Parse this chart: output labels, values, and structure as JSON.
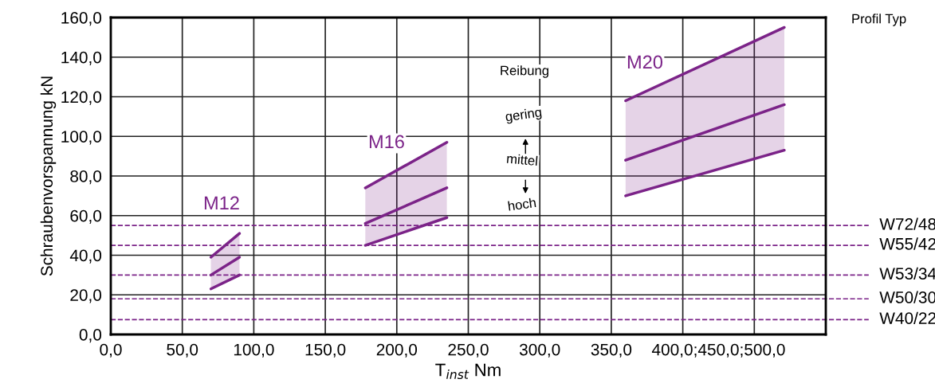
{
  "chart_data": {
    "type": "line",
    "xlabel": "T$_{inst}$ Nm",
    "ylabel": "Schraubenvorspannung kN",
    "xlim": [
      0,
      500
    ],
    "ylim": [
      0,
      160
    ],
    "xticks": [
      {
        "value": 0,
        "label": "0,0"
      },
      {
        "value": 50,
        "label": "50,0"
      },
      {
        "value": 100,
        "label": "100,0"
      },
      {
        "value": 150,
        "label": "150,0"
      },
      {
        "value": 200,
        "label": "200,0"
      },
      {
        "value": 250,
        "label": "250,0"
      },
      {
        "value": 300,
        "label": "300,0"
      },
      {
        "value": 350,
        "label": "350,0"
      },
      {
        "value": 400,
        "label": null
      },
      {
        "value": 425,
        "label": "400,0;450,0;500,0"
      },
      {
        "value": 450,
        "label": null
      }
    ],
    "yticks": [
      {
        "value": 0,
        "label": "0,0"
      },
      {
        "value": 20,
        "label": "20,0"
      },
      {
        "value": 40,
        "label": "40,0"
      },
      {
        "value": 60,
        "label": "60,0"
      },
      {
        "value": 80,
        "label": "80,0"
      },
      {
        "value": 100,
        "label": "100,0"
      },
      {
        "value": 120,
        "label": "120,0"
      },
      {
        "value": 140,
        "label": "140,0"
      },
      {
        "value": 160,
        "label": "160,0"
      }
    ],
    "grid": true,
    "line_style": "solid",
    "marker": "none",
    "series": [
      {
        "color": "#7b2388",
        "x": [
          70,
          90
        ],
        "values": [
          39,
          51
        ]
      },
      {
        "color": "#7b2388",
        "x": [
          70,
          90
        ],
        "values": [
          30,
          39
        ],
        "lower": [
          23,
          30
        ],
        "upper": [
          39,
          51
        ]
      },
      {
        "color": "#7b2388",
        "x": [
          70,
          90
        ],
        "values": [
          23,
          30
        ]
      },
      {
        "color": "#7b2388",
        "x": [
          178,
          235
        ],
        "values": [
          74,
          97
        ]
      },
      {
        "color": "#7b2388",
        "x": [
          178,
          235
        ],
        "values": [
          56,
          74
        ],
        "lower": [
          45,
          59
        ],
        "upper": [
          74,
          97
        ]
      },
      {
        "color": "#7b2388",
        "x": [
          178,
          235
        ],
        "values": [
          45,
          59
        ]
      },
      {
        "color": "#7b2388",
        "x": [
          360,
          471
        ],
        "values": [
          118,
          155
        ]
      },
      {
        "color": "#7b2388",
        "x": [
          360,
          471
        ],
        "values": [
          88,
          116
        ],
        "lower": [
          70,
          93
        ],
        "upper": [
          118,
          155
        ]
      },
      {
        "color": "#7b2388",
        "x": [
          360,
          471
        ],
        "values": [
          70,
          93
        ]
      }
    ],
    "ref_lines": [
      {
        "axis": "y",
        "value": 55,
        "label": "W72/48",
        "color": "#7b2388",
        "line_style": "dashed"
      },
      {
        "axis": "y",
        "value": 45,
        "label": "W55/42",
        "color": "#7b2388",
        "line_style": "dashed"
      },
      {
        "axis": "y",
        "value": 30,
        "label": "W53/34",
        "color": "#7b2388",
        "line_style": "dashed"
      },
      {
        "axis": "y",
        "value": 18,
        "label": "W50/30",
        "color": "#7b2388",
        "line_style": "dashed"
      },
      {
        "axis": "y",
        "value": 7.5,
        "label": "W40/22",
        "color": "#7b2388",
        "line_style": "dashed"
      }
    ],
    "annotations": [
      "M12",
      "M16",
      "M20",
      "Reibung",
      "gering",
      "mittel",
      "hoch",
      "Profil Typ"
    ]
  }
}
